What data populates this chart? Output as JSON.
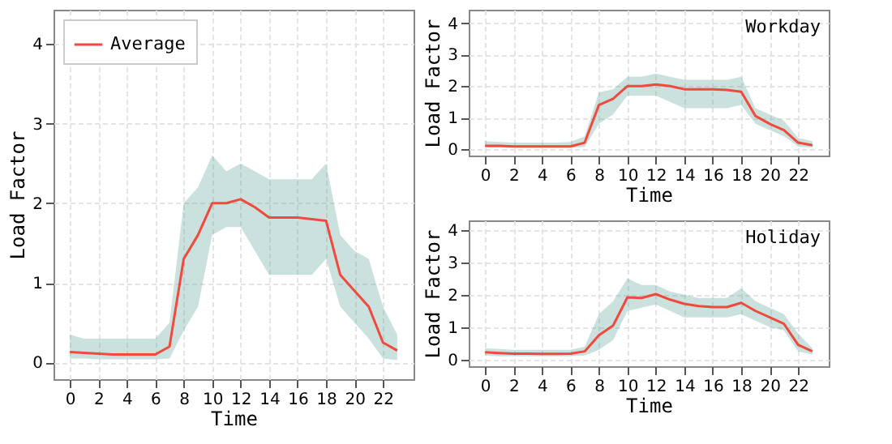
{
  "chart_data": [
    {
      "type": "line",
      "xlabel": "Time",
      "ylabel": "Load Factor",
      "x": [
        0,
        1,
        2,
        3,
        4,
        5,
        6,
        7,
        8,
        9,
        10,
        11,
        12,
        13,
        14,
        15,
        16,
        17,
        18,
        19,
        20,
        21,
        22,
        23
      ],
      "xlim": [
        -1.15,
        24.15
      ],
      "xticks": [
        0,
        2,
        4,
        6,
        8,
        10,
        12,
        14,
        16,
        18,
        20,
        22
      ],
      "ylim": [
        -0.21,
        4.43
      ],
      "yticks": [
        0,
        1,
        2,
        3,
        4
      ],
      "grid": true,
      "legend": "top left",
      "series": [
        {
          "name": "Average",
          "color": "#f04a3e",
          "values": [
            0.13,
            0.12,
            0.11,
            0.1,
            0.1,
            0.1,
            0.1,
            0.2,
            1.3,
            1.6,
            2.0,
            2.0,
            2.05,
            1.95,
            1.82,
            1.82,
            1.82,
            1.8,
            1.78,
            1.1,
            0.9,
            0.7,
            0.25,
            0.15
          ],
          "lower": [
            0.05,
            0.05,
            0.04,
            0.04,
            0.04,
            0.04,
            0.04,
            0.05,
            0.4,
            0.7,
            1.6,
            1.7,
            1.7,
            1.4,
            1.1,
            1.1,
            1.1,
            1.1,
            1.3,
            0.7,
            0.5,
            0.3,
            0.05,
            0.03
          ],
          "upper": [
            0.35,
            0.3,
            0.3,
            0.3,
            0.3,
            0.3,
            0.3,
            0.5,
            2.0,
            2.2,
            2.6,
            2.4,
            2.5,
            2.4,
            2.3,
            2.3,
            2.3,
            2.3,
            2.5,
            1.6,
            1.4,
            1.3,
            0.7,
            0.35
          ]
        }
      ]
    },
    {
      "type": "line",
      "xlabel": "Time",
      "ylabel": "Load Factor",
      "x": [
        0,
        1,
        2,
        3,
        4,
        5,
        6,
        7,
        8,
        9,
        10,
        11,
        12,
        13,
        14,
        15,
        16,
        17,
        18,
        19,
        20,
        21,
        22,
        23
      ],
      "xlim": [
        -1.15,
        24.15
      ],
      "xticks": [
        0,
        2,
        4,
        6,
        8,
        10,
        12,
        14,
        16,
        18,
        20,
        22
      ],
      "ylim": [
        -0.21,
        4.43
      ],
      "yticks": [
        0,
        1,
        2,
        3,
        4
      ],
      "grid": true,
      "legend": "top left",
      "annotations": [
        "Workday"
      ],
      "series": [
        {
          "name": "Average",
          "color": "#f04a3e",
          "values": [
            0.1,
            0.1,
            0.08,
            0.08,
            0.08,
            0.08,
            0.08,
            0.2,
            1.4,
            1.6,
            2.0,
            2.0,
            2.05,
            2.0,
            1.9,
            1.9,
            1.9,
            1.88,
            1.82,
            1.05,
            0.8,
            0.6,
            0.2,
            0.12
          ],
          "lower": [
            0.04,
            0.04,
            0.04,
            0.04,
            0.04,
            0.04,
            0.04,
            0.06,
            0.8,
            1.1,
            1.7,
            1.7,
            1.7,
            1.5,
            1.3,
            1.3,
            1.3,
            1.3,
            1.4,
            0.8,
            0.6,
            0.4,
            0.08,
            0.04
          ],
          "upper": [
            0.25,
            0.22,
            0.2,
            0.2,
            0.2,
            0.2,
            0.22,
            0.4,
            1.8,
            1.9,
            2.3,
            2.3,
            2.4,
            2.3,
            2.2,
            2.2,
            2.2,
            2.2,
            2.3,
            1.3,
            1.1,
            0.9,
            0.35,
            0.25
          ]
        }
      ]
    },
    {
      "type": "line",
      "xlabel": "Time",
      "ylabel": "Load Factor",
      "x": [
        0,
        1,
        2,
        3,
        4,
        5,
        6,
        7,
        8,
        9,
        10,
        11,
        12,
        13,
        14,
        15,
        16,
        17,
        18,
        19,
        20,
        21,
        22,
        23
      ],
      "xlim": [
        -1.15,
        24.15
      ],
      "xticks": [
        0,
        2,
        4,
        6,
        8,
        10,
        12,
        14,
        16,
        18,
        20,
        22
      ],
      "ylim": [
        -0.21,
        4.3
      ],
      "yticks": [
        0,
        1,
        2,
        3,
        4
      ],
      "grid": true,
      "legend": "top left",
      "annotations": [
        "Holiday"
      ],
      "series": [
        {
          "name": "Average",
          "color": "#f04a3e",
          "values": [
            0.22,
            0.2,
            0.18,
            0.18,
            0.17,
            0.17,
            0.18,
            0.25,
            0.75,
            1.05,
            1.92,
            1.9,
            2.02,
            1.85,
            1.72,
            1.65,
            1.62,
            1.62,
            1.75,
            1.5,
            1.3,
            1.1,
            0.45,
            0.25
          ],
          "lower": [
            0.12,
            0.1,
            0.1,
            0.1,
            0.1,
            0.1,
            0.1,
            0.12,
            0.3,
            0.6,
            1.5,
            1.6,
            1.7,
            1.5,
            1.3,
            1.3,
            1.3,
            1.3,
            1.4,
            1.2,
            1.0,
            0.9,
            0.25,
            0.15
          ],
          "upper": [
            0.35,
            0.32,
            0.3,
            0.3,
            0.3,
            0.3,
            0.3,
            0.4,
            1.4,
            1.8,
            2.5,
            2.3,
            2.3,
            2.1,
            2.0,
            1.9,
            1.9,
            1.9,
            2.2,
            1.8,
            1.6,
            1.4,
            0.8,
            0.35
          ]
        }
      ]
    }
  ]
}
